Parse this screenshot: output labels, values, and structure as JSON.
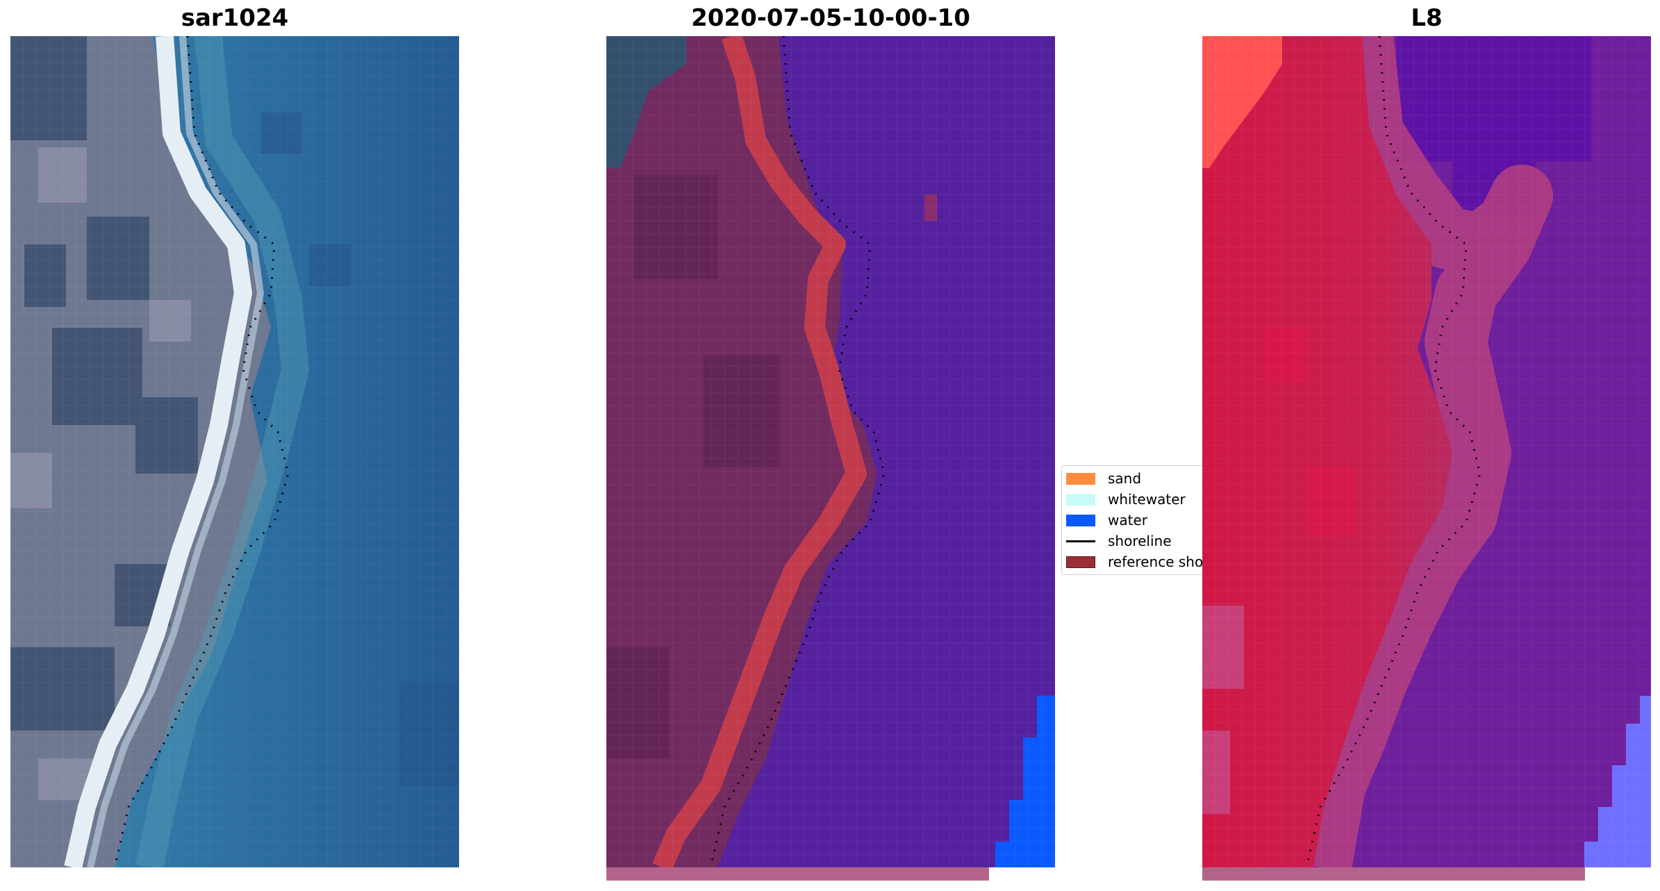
{
  "panels": [
    {
      "id": "rgb",
      "title": "sar1024"
    },
    {
      "id": "classified",
      "title": "2020-07-05-10-00-10"
    },
    {
      "id": "index",
      "title": "L8"
    }
  ],
  "legend": {
    "items": [
      {
        "label": "sand",
        "color": "#ff8c3f",
        "kind": "patch"
      },
      {
        "label": "whitewater",
        "color": "#c8fafa",
        "kind": "patch"
      },
      {
        "label": "water",
        "color": "#0a5aff",
        "kind": "patch"
      },
      {
        "label": "shoreline",
        "color": "#000000",
        "kind": "line"
      },
      {
        "label": "reference shoreline",
        "color": "#9a2f36",
        "kind": "patch"
      }
    ]
  },
  "colors": {
    "rgb_land": "#6b7690",
    "rgb_land_dark": "#35486a",
    "rgb_sand": "#e4ecf2",
    "rgb_sea": "#2d6e9e",
    "class_land": "#6f2a5e",
    "class_sand": "#c23b4f",
    "class_water": "#5520a0",
    "class_water_right": "#0a5aff",
    "index_land": "#cf1f4a",
    "index_red_corner": "#ff5050",
    "index_water": "#6e1c9c",
    "index_water_corner": "#7878ff",
    "strip": "#b4648c"
  }
}
